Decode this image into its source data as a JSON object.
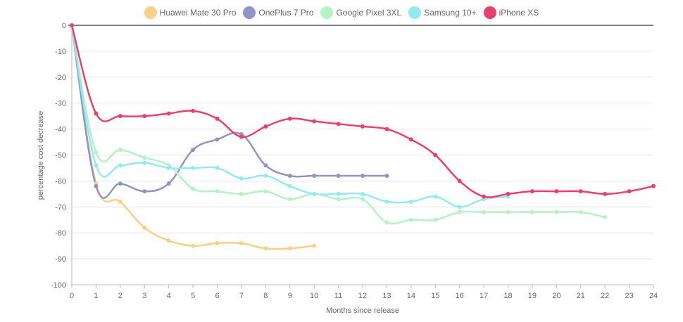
{
  "chart_data": {
    "type": "line",
    "xlabel": "Months since release",
    "ylabel": "percentage cost decrease",
    "xlim": [
      0,
      24
    ],
    "ylim": [
      -100,
      0
    ],
    "x_ticks": [
      "0",
      "1",
      "2",
      "3",
      "4",
      "5",
      "6",
      "7",
      "8",
      "9",
      "10",
      "11",
      "12",
      "13",
      "14",
      "15",
      "16",
      "17",
      "18",
      "19",
      "20",
      "21",
      "22",
      "23",
      "24"
    ],
    "y_ticks": [
      "0",
      "-10",
      "-20",
      "-30",
      "-40",
      "-50",
      "-60",
      "-70",
      "-80",
      "-90",
      "-100"
    ],
    "grid": true,
    "legend_position": "top",
    "series": [
      {
        "name": "Huawei Mate 30 Pro",
        "color": "#f9d186",
        "x": [
          0,
          1,
          2,
          3,
          4,
          5,
          6,
          7,
          8,
          9,
          10
        ],
        "values": [
          0,
          -61,
          -68,
          -78,
          -83,
          -85,
          -84,
          -84,
          -86,
          -86,
          -85
        ]
      },
      {
        "name": "OnePlus 7 Pro",
        "color": "#9393c8",
        "x": [
          0,
          1,
          2,
          3,
          4,
          5,
          6,
          7,
          8,
          9,
          10,
          11,
          12,
          13
        ],
        "values": [
          0,
          -62,
          -61,
          -64,
          -61,
          -48,
          -44,
          -42,
          -54,
          -58,
          -58,
          -58,
          -58,
          -58
        ]
      },
      {
        "name": "Google Pixel 3XL",
        "color": "#b3f3c5",
        "x": [
          0,
          1,
          2,
          3,
          4,
          5,
          6,
          7,
          8,
          9,
          10,
          11,
          12,
          13,
          14,
          15,
          16,
          17,
          18,
          19,
          20,
          21,
          22
        ],
        "values": [
          0,
          -49,
          -48,
          -51,
          -54,
          -63,
          -64,
          -65,
          -64,
          -67,
          -65,
          -67,
          -67,
          -76,
          -75,
          -75,
          -72,
          -72,
          -72,
          -72,
          -72,
          -72,
          -74
        ]
      },
      {
        "name": "Samsung 10+",
        "color": "#94eaf0",
        "x": [
          0,
          1,
          2,
          3,
          4,
          5,
          6,
          7,
          8,
          9,
          10,
          11,
          12,
          13,
          14,
          15,
          16,
          17,
          18
        ],
        "values": [
          0,
          -54,
          -54,
          -53,
          -55,
          -55,
          -55,
          -59,
          -58,
          -62,
          -65,
          -65,
          -65,
          -68,
          -68,
          -66,
          -70,
          -67,
          -66
        ]
      },
      {
        "name": "iPhone XS",
        "color": "#e9416e",
        "x": [
          0,
          1,
          2,
          3,
          4,
          5,
          6,
          7,
          8,
          9,
          10,
          11,
          12,
          13,
          14,
          15,
          16,
          17,
          18,
          19,
          20,
          21,
          22,
          23,
          24
        ],
        "values": [
          0,
          -34,
          -35,
          -35,
          -34,
          -33,
          -36,
          -43,
          -39,
          -36,
          -37,
          -38,
          -39,
          -40,
          -44,
          -50,
          -60,
          -66,
          -65,
          -64,
          -64,
          -64,
          -65,
          -64,
          -62
        ]
      }
    ]
  }
}
